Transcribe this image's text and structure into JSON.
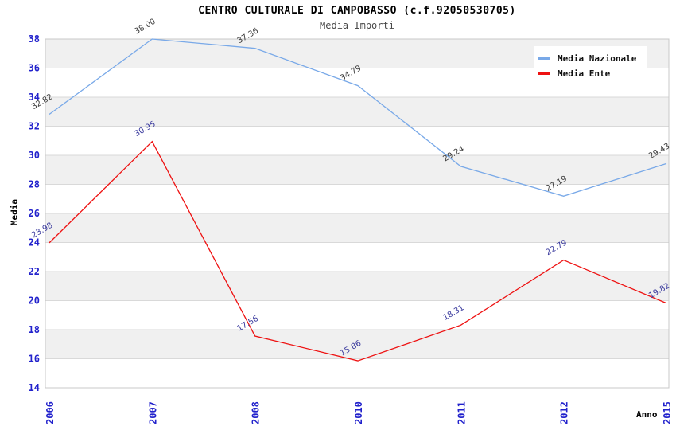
{
  "header": {
    "title": "CENTRO CULTURALE DI CAMPOBASSO (c.f.92050530705)",
    "subtitle": "Media Importi"
  },
  "axes": {
    "y_title": "Media",
    "x_title": "Anno"
  },
  "legend": {
    "items": [
      {
        "label": "Media Nazionale",
        "color": "#79a9e8"
      },
      {
        "label": "Media Ente",
        "color": "#ee1111"
      }
    ]
  },
  "chart_data": {
    "type": "line",
    "title": "CENTRO CULTURALE DI CAMPOBASSO (c.f.92050530705)",
    "subtitle": "Media Importi",
    "xlabel": "Anno",
    "ylabel": "Media",
    "categories": [
      "2006",
      "2007",
      "2008",
      "2010",
      "2011",
      "2012",
      "2015"
    ],
    "series": [
      {
        "name": "Media Nazionale",
        "color": "#79a9e8",
        "label_color": "#3c3c3c",
        "values": [
          32.82,
          38.0,
          37.36,
          34.79,
          29.24,
          27.19,
          29.43
        ]
      },
      {
        "name": "Media Ente",
        "color": "#ee1111",
        "label_color": "#3b3b9e",
        "values": [
          23.98,
          30.95,
          17.56,
          15.86,
          18.31,
          22.79,
          19.82
        ]
      }
    ],
    "ylim": [
      14,
      38
    ],
    "y_tick_step": 2,
    "y_ticks": [
      14,
      16,
      18,
      20,
      22,
      24,
      26,
      28,
      30,
      32,
      34,
      36,
      38
    ],
    "grid": "horizontal-bands-alternating",
    "legend_position": "top-right",
    "colors": {
      "tick_label": "#2222cc",
      "band_gray": "#f0f0f0",
      "band_white": "#ffffff",
      "gridline": "#d9d9d9",
      "plot_border": "#c8c8c8"
    }
  }
}
